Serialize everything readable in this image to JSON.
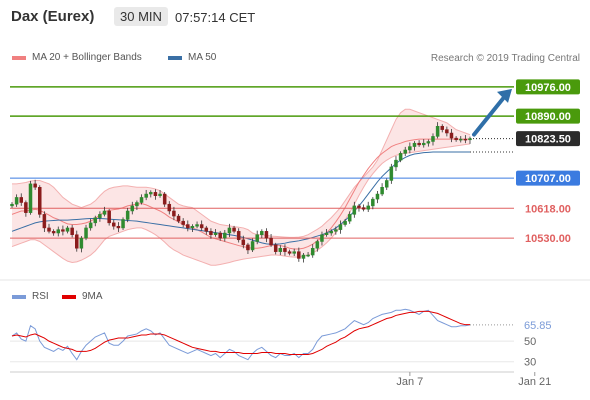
{
  "header": {
    "instrument": "Dax (Eurex)",
    "timeframe": "30 MIN",
    "time": "07:57:14 CET"
  },
  "legend": {
    "ma_bands": "MA 20 + Bollinger Bands",
    "ma50": "MA 50",
    "credit": "Research © 2019 Trading Central",
    "rsi": "RSI",
    "ma9": "9MA"
  },
  "colors": {
    "ma_bands": "#f08080",
    "ma50": "#3a6fa5",
    "green": "#4a9a0c",
    "blue": "#3b7be0",
    "red": "#e06060",
    "dark": "#2b2b2b",
    "arrow": "#2f6fa8",
    "rsi": "#7b9bd8",
    "ma9": "#e00000"
  },
  "chart_data": {
    "type": "candlestick",
    "price_axis": {
      "ylim": [
        10430,
        11020
      ]
    },
    "levels": [
      {
        "value": 10976,
        "label": "10976.00",
        "color": "#4a9a0c",
        "kind": "target"
      },
      {
        "value": 10890,
        "label": "10890.00",
        "color": "#4a9a0c",
        "kind": "target"
      },
      {
        "value": 10823.5,
        "label": "10823.50",
        "color": "#2b2b2b",
        "kind": "last"
      },
      {
        "value": 10707,
        "label": "10707.00",
        "color": "#3b7be0",
        "kind": "pivot"
      },
      {
        "value": 10618,
        "label": "10618.00",
        "color": "#e06060",
        "kind": "support"
      },
      {
        "value": 10530,
        "label": "10530.00",
        "color": "#e06060",
        "kind": "support"
      }
    ],
    "close_series": [
      10630,
      10650,
      10635,
      10605,
      10690,
      10680,
      10600,
      10560,
      10550,
      10545,
      10555,
      10550,
      10560,
      10540,
      10500,
      10530,
      10560,
      10575,
      10590,
      10600,
      10610,
      10575,
      10565,
      10560,
      10585,
      10610,
      10625,
      10635,
      10650,
      10660,
      10665,
      10655,
      10660,
      10630,
      10610,
      10595,
      10580,
      10570,
      10560,
      10565,
      10570,
      10560,
      10550,
      10540,
      10545,
      10530,
      10545,
      10560,
      10550,
      10525,
      10510,
      10495,
      10520,
      10540,
      10550,
      10530,
      10510,
      10490,
      10500,
      10490,
      10485,
      10490,
      10470,
      10480,
      10480,
      10500,
      10520,
      10540,
      10545,
      10550,
      10555,
      10570,
      10580,
      10600,
      10625,
      10620,
      10615,
      10625,
      10645,
      10660,
      10680,
      10700,
      10740,
      10760,
      10780,
      10790,
      10800,
      10810,
      10805,
      10810,
      10815,
      10830,
      10860,
      10850,
      10840,
      10825,
      10820,
      10822,
      10820,
      10823.5
    ],
    "ma_band_upper": [
      10690,
      10690,
      10692,
      10694,
      10698,
      10700,
      10700,
      10695,
      10690,
      10680,
      10665,
      10650,
      10640,
      10630,
      10625,
      10620,
      10625,
      10630,
      10640,
      10655,
      10668,
      10676,
      10680,
      10682,
      10684,
      10684,
      10682,
      10680,
      10680,
      10680,
      10678,
      10675,
      10670,
      10660,
      10650,
      10640,
      10630,
      10625,
      10622,
      10620,
      10610,
      10600,
      10590,
      10580,
      10575,
      10570,
      10568,
      10566,
      10564,
      10562,
      10560,
      10555,
      10545,
      10540,
      10540,
      10538,
      10536,
      10535,
      10534,
      10533,
      10532,
      10532,
      10533,
      10535,
      10540,
      10548,
      10556,
      10565,
      10578,
      10590,
      10605,
      10620,
      10640,
      10660,
      10680,
      10695,
      10710,
      10725,
      10740,
      10760,
      10790,
      10820,
      10850,
      10880,
      10900,
      10910,
      10910,
      10905,
      10900,
      10895,
      10890,
      10885,
      10880,
      10875,
      10870,
      10860,
      10850,
      10845,
      10840,
      10835
    ],
    "ma20": [
      10600,
      10605,
      10610,
      10610,
      10612,
      10615,
      10612,
      10605,
      10598,
      10590,
      10585,
      10578,
      10572,
      10570,
      10570,
      10572,
      10575,
      10580,
      10588,
      10598,
      10608,
      10612,
      10614,
      10616,
      10620,
      10625,
      10628,
      10630,
      10632,
      10628,
      10622,
      10616,
      10610,
      10602,
      10592,
      10585,
      10578,
      10570,
      10565,
      10560,
      10555,
      10548,
      10540,
      10532,
      10528,
      10524,
      10520,
      10516,
      10512,
      10508,
      10505,
      10502,
      10500,
      10500,
      10502,
      10505,
      10508,
      10510,
      10508,
      10505,
      10500,
      10498,
      10498,
      10500,
      10505,
      10512,
      10522,
      10532,
      10545,
      10560,
      10578,
      10598,
      10620,
      10645,
      10670,
      10695,
      10715,
      10735,
      10752,
      10768,
      10780,
      10790,
      10800,
      10806,
      10810,
      10815,
      10818,
      10820,
      10822,
      10822,
      10822,
      10822,
      10822,
      10822,
      10822,
      10822,
      10822,
      10822,
      10822,
      10822
    ],
    "ma_band_lower": [
      10505,
      10510,
      10515,
      10520,
      10525,
      10525,
      10520,
      10510,
      10500,
      10490,
      10480,
      10470,
      10462,
      10458,
      10460,
      10465,
      10472,
      10480,
      10492,
      10508,
      10525,
      10535,
      10540,
      10545,
      10550,
      10555,
      10558,
      10560,
      10560,
      10555,
      10548,
      10540,
      10530,
      10518,
      10505,
      10495,
      10488,
      10480,
      10475,
      10470,
      10465,
      10460,
      10455,
      10450,
      10450,
      10452,
      10455,
      10458,
      10462,
      10465,
      10468,
      10470,
      10472,
      10474,
      10476,
      10478,
      10480,
      10480,
      10479,
      10477,
      10475,
      10474,
      10474,
      10476,
      10480,
      10486,
      10494,
      10504,
      10516,
      10530,
      10546,
      10564,
      10584,
      10606,
      10630,
      10656,
      10680,
      10702,
      10720,
      10736,
      10750,
      10760,
      10768,
      10774,
      10778,
      10780,
      10782,
      10784,
      10786,
      10788,
      10790,
      10792,
      10794,
      10796,
      10798,
      10800,
      10802,
      10804,
      10806,
      10808
    ],
    "ma50": [
      10550,
      10555,
      10560,
      10565,
      10570,
      10575,
      10578,
      10580,
      10581,
      10582,
      10583,
      10583,
      10583,
      10584,
      10585,
      10586,
      10587,
      10588,
      10588,
      10588,
      10587,
      10586,
      10585,
      10584,
      10583,
      10582,
      10581,
      10580,
      10578,
      10576,
      10574,
      10572,
      10570,
      10568,
      10566,
      10564,
      10562,
      10560,
      10558,
      10556,
      10554,
      10552,
      10550,
      10548,
      10546,
      10544,
      10542,
      10540,
      10538,
      10535,
      10532,
      10528,
      10524,
      10520,
      10516,
      10513,
      10512,
      10512,
      10513,
      10515,
      10518,
      10520,
      10522,
      10525,
      10528,
      10532,
      10536,
      10540,
      10545,
      10552,
      10560,
      10570,
      10582,
      10595,
      10610,
      10625,
      10642,
      10660,
      10678,
      10696,
      10712,
      10725,
      10738,
      10750,
      10760,
      10768,
      10774,
      10778,
      10780,
      10782,
      10783,
      10784,
      10784,
      10784,
      10784,
      10784,
      10784,
      10784,
      10784,
      10784
    ],
    "forecast_arrow": {
      "from_value": 10823.5,
      "to_value": 10976
    },
    "rsi_axis": {
      "ylim": [
        20,
        90
      ],
      "ticks": [
        30,
        50
      ]
    },
    "rsi_last": {
      "value": 65.85,
      "label": "65.85"
    },
    "rsi_series": [
      55,
      58,
      52,
      50,
      65,
      62,
      50,
      44,
      42,
      40,
      43,
      41,
      45,
      38,
      32,
      40,
      46,
      50,
      54,
      56,
      58,
      48,
      46,
      46,
      50,
      55,
      56,
      57,
      60,
      62,
      60,
      56,
      58,
      52,
      46,
      44,
      42,
      40,
      38,
      40,
      42,
      40,
      38,
      36,
      38,
      34,
      38,
      42,
      40,
      36,
      34,
      32,
      38,
      42,
      44,
      40,
      36,
      34,
      38,
      36,
      36,
      38,
      34,
      38,
      38,
      42,
      50,
      55,
      56,
      57,
      58,
      60,
      62,
      66,
      70,
      68,
      66,
      68,
      72,
      74,
      76,
      77,
      78,
      80,
      80,
      81,
      80,
      78,
      76,
      79,
      80,
      75,
      70,
      68,
      66,
      64,
      64,
      65,
      65,
      65.85
    ],
    "rsi_ma9": [
      55,
      56,
      55,
      54,
      56,
      57,
      55,
      53,
      50,
      48,
      46,
      44,
      43,
      42,
      40,
      40,
      40,
      41,
      43,
      46,
      49,
      51,
      52,
      53,
      53,
      53,
      54,
      55,
      56,
      56,
      57,
      57,
      57,
      56,
      54,
      52,
      50,
      48,
      46,
      44,
      43,
      42,
      41,
      40,
      40,
      39,
      39,
      39,
      39,
      39,
      38,
      38,
      38,
      38,
      39,
      39,
      39,
      38,
      38,
      38,
      37,
      37,
      37,
      37,
      37,
      38,
      40,
      42,
      45,
      47,
      49,
      52,
      54,
      57,
      60,
      62,
      63,
      64,
      66,
      68,
      70,
      72,
      73,
      75,
      76,
      77,
      78,
      78,
      79,
      79,
      79,
      78,
      77,
      75,
      73,
      71,
      69,
      67,
      66,
      66
    ],
    "time_axis": [
      {
        "index": 86,
        "label": "Jan 7"
      },
      {
        "index": 113,
        "label": "Jan 21"
      }
    ]
  }
}
